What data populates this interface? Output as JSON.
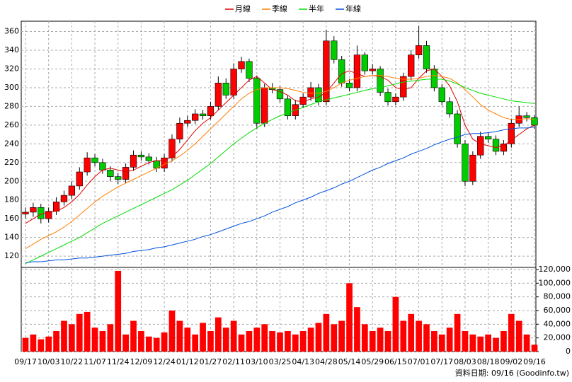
{
  "chart_data": {
    "type": "candlestick",
    "x": [
      "09/17",
      null,
      null,
      "10/03",
      null,
      null,
      "10/22",
      null,
      null,
      "11/07",
      null,
      null,
      "11/24",
      null,
      null,
      "12/09",
      null,
      null,
      "12/24",
      null,
      null,
      "01/12",
      null,
      null,
      "01/27",
      null,
      null,
      "02/11",
      null,
      null,
      "03/10",
      null,
      null,
      "03/25",
      null,
      null,
      "04/13",
      null,
      null,
      "04/28",
      null,
      null,
      "05/14",
      null,
      null,
      "05/29",
      null,
      null,
      "06/15",
      null,
      null,
      "07/01",
      null,
      null,
      "07/17",
      null,
      null,
      "08/03",
      null,
      null,
      "08/18",
      null,
      null,
      "09/02",
      null,
      null,
      "09/16"
    ],
    "open": [
      165,
      167,
      172,
      160,
      168,
      178,
      185,
      195,
      210,
      225,
      220,
      212,
      205,
      202,
      215,
      228,
      226,
      222,
      214,
      225,
      245,
      262,
      265,
      272,
      270,
      280,
      305,
      292,
      320,
      328,
      310,
      262,
      300,
      298,
      288,
      270,
      282,
      290,
      300,
      285,
      350,
      330,
      305,
      300,
      335,
      318,
      320,
      295,
      285,
      290,
      312,
      335,
      345,
      320,
      300,
      285,
      272,
      240,
      200,
      228,
      248,
      245,
      232,
      240,
      262,
      270,
      268
    ],
    "high": [
      172,
      177,
      176,
      172,
      183,
      190,
      200,
      215,
      231,
      229,
      224,
      216,
      209,
      219,
      233,
      232,
      230,
      226,
      229,
      250,
      268,
      270,
      277,
      276,
      285,
      312,
      310,
      326,
      333,
      331,
      313,
      304,
      305,
      302,
      292,
      287,
      294,
      306,
      304,
      362,
      355,
      334,
      309,
      345,
      338,
      325,
      323,
      299,
      294,
      316,
      340,
      366,
      350,
      324,
      304,
      290,
      276,
      244,
      232,
      253,
      252,
      249,
      244,
      267,
      280,
      274,
      271
    ],
    "low": [
      160,
      162,
      155,
      156,
      164,
      174,
      181,
      191,
      206,
      216,
      208,
      200,
      197,
      198,
      211,
      222,
      218,
      210,
      210,
      221,
      241,
      258,
      261,
      266,
      266,
      276,
      288,
      288,
      316,
      306,
      256,
      258,
      294,
      284,
      266,
      266,
      278,
      286,
      281,
      281,
      326,
      301,
      296,
      296,
      314,
      314,
      291,
      281,
      281,
      286,
      308,
      331,
      316,
      296,
      281,
      268,
      236,
      195,
      196,
      224,
      241,
      228,
      228,
      236,
      258,
      264,
      256
    ],
    "close": [
      167,
      172,
      160,
      168,
      178,
      185,
      195,
      210,
      225,
      220,
      212,
      205,
      202,
      215,
      228,
      226,
      222,
      214,
      225,
      245,
      262,
      265,
      272,
      270,
      280,
      305,
      292,
      320,
      328,
      310,
      262,
      300,
      298,
      288,
      270,
      282,
      290,
      300,
      285,
      350,
      330,
      305,
      300,
      335,
      318,
      320,
      295,
      285,
      290,
      312,
      335,
      345,
      320,
      300,
      285,
      272,
      240,
      200,
      228,
      248,
      245,
      232,
      240,
      262,
      270,
      268,
      260
    ],
    "up_color": "#ff0000",
    "down_color": "#00cc00",
    "ylim": [
      108,
      371
    ],
    "yticks": [
      120,
      140,
      160,
      180,
      200,
      220,
      240,
      260,
      280,
      300,
      320,
      340,
      360
    ],
    "grid": true,
    "series": [
      {
        "name": "月線",
        "color": "#dd0000",
        "values": [
          155,
          160,
          165,
          167,
          168,
          172,
          178,
          186,
          196,
          205,
          212,
          214,
          212,
          210,
          212,
          216,
          220,
          222,
          222,
          226,
          234,
          244,
          254,
          262,
          268,
          276,
          284,
          292,
          300,
          308,
          312,
          305,
          298,
          296,
          292,
          286,
          285,
          288,
          290,
          295,
          305,
          315,
          318,
          315,
          312,
          313,
          312,
          308,
          300,
          298,
          300,
          310,
          318,
          320,
          312,
          302,
          285,
          260,
          245,
          240,
          238,
          236,
          238,
          244,
          250,
          256,
          260
        ]
      },
      {
        "name": "季線",
        "color": "#ff7f00",
        "values": [
          128,
          133,
          138,
          142,
          146,
          151,
          157,
          164,
          171,
          178,
          184,
          189,
          194,
          198,
          202,
          206,
          210,
          214,
          218,
          222,
          227,
          233,
          240,
          248,
          256,
          264,
          272,
          280,
          288,
          294,
          298,
          300,
          300,
          300,
          299,
          297,
          295,
          294,
          294,
          296,
          300,
          305,
          308,
          310,
          312,
          313,
          313,
          312,
          310,
          309,
          309,
          310,
          312,
          313,
          312,
          310,
          305,
          298,
          290,
          282,
          276,
          272,
          268,
          266,
          266,
          267,
          266
        ]
      },
      {
        "name": "半年",
        "color": "#00dd00",
        "values": [
          112,
          116,
          120,
          124,
          128,
          132,
          136,
          140,
          145,
          150,
          155,
          159,
          163,
          167,
          171,
          175,
          179,
          183,
          187,
          191,
          196,
          201,
          207,
          213,
          219,
          226,
          233,
          240,
          246,
          252,
          257,
          262,
          266,
          270,
          273,
          276,
          279,
          282,
          285,
          287,
          289,
          291,
          293,
          295,
          297,
          299,
          300,
          302,
          304,
          306,
          307,
          308,
          309,
          309,
          309,
          307,
          304,
          300,
          297,
          294,
          292,
          290,
          288,
          286,
          285,
          284,
          283
        ]
      },
      {
        "name": "年線",
        "color": "#0050dd",
        "values": [
          113,
          114,
          114,
          115,
          116,
          116,
          117,
          118,
          118,
          119,
          120,
          121,
          122,
          123,
          125,
          126,
          127,
          129,
          130,
          132,
          134,
          136,
          138,
          141,
          143,
          146,
          149,
          152,
          155,
          157,
          160,
          163,
          167,
          170,
          173,
          177,
          180,
          183,
          187,
          190,
          193,
          197,
          200,
          204,
          208,
          212,
          215,
          219,
          222,
          225,
          229,
          232,
          235,
          239,
          242,
          245,
          247,
          250,
          251,
          251,
          252,
          253,
          255,
          256,
          257,
          257,
          258
        ]
      }
    ],
    "volume": {
      "color": "#ff0000",
      "values": [
        20000,
        25000,
        18000,
        22000,
        30000,
        45000,
        40000,
        55000,
        58000,
        35000,
        30000,
        40000,
        118000,
        25000,
        45000,
        30000,
        22000,
        20000,
        28000,
        60000,
        45000,
        35000,
        25000,
        42000,
        30000,
        50000,
        35000,
        45000,
        25000,
        30000,
        35000,
        40000,
        30000,
        28000,
        30000,
        25000,
        30000,
        35000,
        42000,
        55000,
        40000,
        45000,
        100000,
        65000,
        40000,
        30000,
        35000,
        30000,
        80000,
        45000,
        55000,
        45000,
        40000,
        30000,
        25000,
        35000,
        55000,
        30000,
        25000,
        22000,
        25000,
        20000,
        30000,
        55000,
        45000,
        25000,
        10000
      ],
      "ylim": [
        0,
        120000
      ],
      "yticks": [
        {
          "value": 0,
          "label": "0"
        },
        {
          "value": 20000,
          "label": "20,000"
        },
        {
          "value": 40000,
          "label": "40,000"
        },
        {
          "value": 60000,
          "label": "60,000"
        },
        {
          "value": 80000,
          "label": "80,000"
        },
        {
          "value": 100000,
          "label": "100,000"
        },
        {
          "value": 120000,
          "label": "120,000"
        }
      ]
    },
    "footnote": "資料日期: 09/16 (Goodinfo.tw)"
  }
}
